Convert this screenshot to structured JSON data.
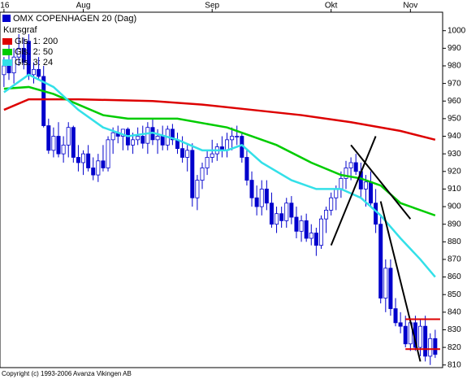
{
  "chart_data": {
    "type": "candlestick",
    "title": "OMX COPENHAGEN 20 (Dag)",
    "subtitle": "Kursgraf",
    "footer": "Copyright (c) 1993-2006 Avanza Vikingen AB",
    "color": "#0000cc",
    "up_color": "#ffffff",
    "xlim": [
      -0.8,
      88.5
    ],
    "xticks": [
      {
        "value": 0,
        "label": "'16"
      },
      {
        "value": 16,
        "label": "Aug"
      },
      {
        "value": 42,
        "label": "Sep"
      },
      {
        "value": 66,
        "label": "Okt"
      },
      {
        "value": 82,
        "label": "Nov"
      }
    ],
    "ylim": [
      808.5,
      1010.5
    ],
    "yticks": [
      810,
      820,
      830,
      840,
      850,
      860,
      870,
      880,
      890,
      900,
      910,
      920,
      930,
      940,
      950,
      960,
      970,
      980,
      990,
      1000
    ],
    "candles": {
      "open": [
        975,
        980,
        976,
        985,
        990,
        994,
        975,
        978,
        974,
        946,
        932,
        940,
        930,
        935,
        945,
        928,
        925,
        930,
        922,
        918,
        926,
        922,
        938,
        942,
        940,
        944,
        935,
        938,
        940,
        936,
        945,
        938,
        940,
        935,
        944,
        938,
        933,
        928,
        932,
        905,
        915,
        922,
        928,
        930,
        934,
        932,
        938,
        940,
        940,
        928,
        915,
        905,
        900,
        910,
        902,
        890,
        896,
        892,
        902,
        894,
        886,
        892,
        882,
        885,
        878,
        893,
        898,
        905,
        910,
        916,
        922,
        925,
        920,
        910,
        914,
        902,
        890,
        848,
        865,
        842,
        834,
        832,
        822,
        834,
        820,
        832,
        815,
        825
      ],
      "high": [
        985,
        992,
        990,
        998,
        996,
        998,
        982,
        985,
        980,
        950,
        945,
        948,
        940,
        948,
        946,
        935,
        932,
        935,
        928,
        930,
        935,
        940,
        945,
        946,
        944,
        945,
        942,
        945,
        946,
        948,
        950,
        944,
        946,
        946,
        947,
        942,
        940,
        935,
        936,
        918,
        925,
        932,
        938,
        936,
        940,
        942,
        945,
        946,
        942,
        932,
        920,
        912,
        915,
        915,
        908,
        900,
        900,
        905,
        906,
        900,
        895,
        896,
        890,
        888,
        895,
        900,
        908,
        912,
        920,
        926,
        928,
        930,
        925,
        918,
        920,
        910,
        895,
        870,
        870,
        848,
        840,
        838,
        836,
        838,
        836,
        838,
        828,
        830
      ],
      "low": [
        968,
        972,
        970,
        980,
        978,
        972,
        970,
        972,
        945,
        930,
        928,
        928,
        925,
        928,
        925,
        920,
        918,
        920,
        915,
        914,
        920,
        920,
        930,
        936,
        932,
        932,
        930,
        935,
        933,
        930,
        935,
        930,
        932,
        932,
        935,
        930,
        925,
        920,
        900,
        898,
        910,
        918,
        925,
        926,
        928,
        928,
        932,
        935,
        925,
        912,
        900,
        895,
        895,
        898,
        888,
        885,
        888,
        888,
        890,
        882,
        880,
        880,
        878,
        872,
        876,
        885,
        895,
        898,
        905,
        910,
        915,
        918,
        905,
        900,
        900,
        885,
        845,
        840,
        838,
        832,
        828,
        820,
        818,
        818,
        815,
        812,
        810,
        814
      ],
      "close": [
        980,
        976,
        985,
        990,
        982,
        975,
        978,
        974,
        946,
        932,
        940,
        930,
        935,
        945,
        928,
        925,
        930,
        922,
        918,
        926,
        922,
        938,
        942,
        940,
        944,
        935,
        938,
        940,
        936,
        945,
        938,
        940,
        935,
        944,
        938,
        933,
        928,
        932,
        905,
        915,
        922,
        928,
        930,
        934,
        932,
        938,
        940,
        940,
        928,
        915,
        905,
        900,
        910,
        902,
        890,
        896,
        892,
        902,
        894,
        886,
        892,
        882,
        885,
        878,
        893,
        898,
        905,
        910,
        916,
        922,
        925,
        920,
        910,
        914,
        902,
        890,
        848,
        865,
        842,
        834,
        832,
        822,
        834,
        820,
        832,
        815,
        825,
        816
      ]
    },
    "series": [
      {
        "name": "Gls. 1: 200",
        "color": "#dd0000",
        "x": [
          0,
          5,
          15,
          30,
          40,
          50,
          60,
          70,
          80,
          87
        ],
        "values": [
          955,
          961,
          961,
          960,
          958,
          955,
          952,
          948,
          943,
          938
        ]
      },
      {
        "name": "Gls. 2: 50",
        "color": "#00cc00",
        "x": [
          0,
          5,
          10,
          15,
          20,
          25,
          35,
          45,
          55,
          62,
          68,
          72,
          76,
          80,
          87
        ],
        "values": [
          967,
          968,
          964,
          958,
          952,
          950,
          950,
          945,
          935,
          925,
          918,
          916,
          912,
          902,
          895
        ]
      },
      {
        "name": "Gls. 3: 24",
        "color": "#33e0e8",
        "x": [
          0,
          5,
          10,
          15,
          20,
          25,
          30,
          35,
          40,
          45,
          48,
          52,
          58,
          63,
          68,
          72,
          76,
          80,
          84,
          87
        ],
        "values": [
          965,
          975,
          968,
          955,
          945,
          940,
          942,
          938,
          932,
          932,
          935,
          925,
          915,
          910,
          910,
          905,
          895,
          882,
          870,
          860
        ]
      }
    ],
    "drawings": [
      {
        "color": "#000000",
        "x": [
          66,
          75
        ],
        "y": [
          878,
          940
        ]
      },
      {
        "color": "#000000",
        "x": [
          70,
          82
        ],
        "y": [
          935,
          893
        ]
      },
      {
        "color": "#000000",
        "x": [
          76,
          84
        ],
        "y": [
          903,
          812
        ]
      },
      {
        "color": "#dd0000",
        "x": [
          81,
          88
        ],
        "y": [
          836,
          836
        ]
      },
      {
        "color": "#dd0000",
        "x": [
          81,
          88
        ],
        "y": [
          819,
          819
        ]
      }
    ]
  }
}
